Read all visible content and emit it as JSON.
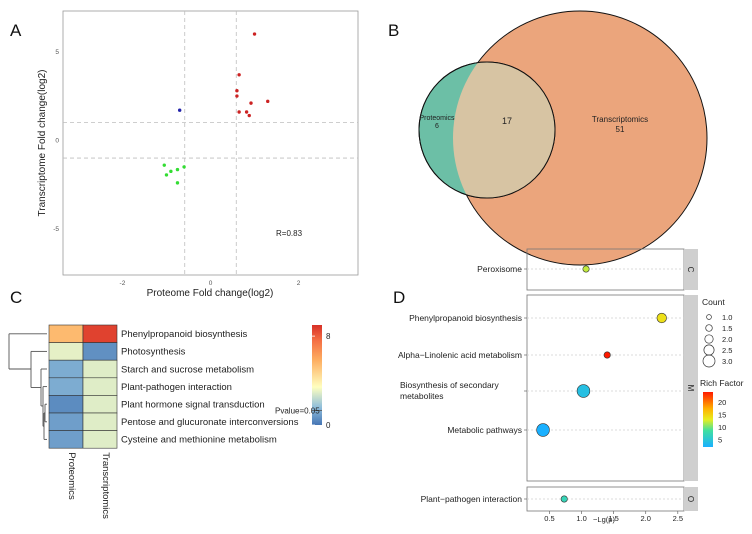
{
  "colors": {
    "up": "#cc2222",
    "down": "#33dd33",
    "opposite": "#2222aa",
    "venn_proteomics": "#6cbfa6",
    "venn_transcriptomics": "#eba57c",
    "venn_overlap": "#d7c4a3",
    "grid": "#bdbdbd",
    "strip": "#cfcfcf"
  },
  "panels": {
    "a": {
      "letter": "A"
    },
    "b": {
      "letter": "B"
    },
    "c": {
      "letter": "C"
    },
    "d": {
      "letter": "D"
    }
  },
  "chart_data": [
    {
      "type": "scatter",
      "panel": "A",
      "xlabel": "Proteome Fold change(log2)",
      "ylabel": "Transcriptome Fold change(log2)",
      "xlim": [
        -3.35,
        3.35
      ],
      "ylim": [
        -7.6,
        7.3
      ],
      "xticks": [
        -2,
        0,
        2
      ],
      "yticks": [
        -5,
        0,
        5
      ],
      "threshold_lines": {
        "x": [
          -0.585,
          0.585
        ],
        "y": [
          -1,
          1
        ]
      },
      "annotation": "R=0.83",
      "points": [
        {
          "x": 1.0,
          "y": 6.0,
          "group": "up"
        },
        {
          "x": 0.65,
          "y": 3.7,
          "group": "up"
        },
        {
          "x": 0.6,
          "y": 2.8,
          "group": "up"
        },
        {
          "x": 0.6,
          "y": 2.5,
          "group": "up"
        },
        {
          "x": 1.3,
          "y": 2.2,
          "group": "up"
        },
        {
          "x": 0.92,
          "y": 2.1,
          "group": "up"
        },
        {
          "x": 0.65,
          "y": 1.6,
          "group": "up"
        },
        {
          "x": 0.82,
          "y": 1.6,
          "group": "up"
        },
        {
          "x": 0.88,
          "y": 1.4,
          "group": "up"
        },
        {
          "x": -0.7,
          "y": 1.7,
          "group": "opposite"
        },
        {
          "x": -1.05,
          "y": -1.4,
          "group": "down"
        },
        {
          "x": -0.6,
          "y": -1.5,
          "group": "down"
        },
        {
          "x": -0.75,
          "y": -1.65,
          "group": "down"
        },
        {
          "x": -0.9,
          "y": -1.75,
          "group": "down"
        },
        {
          "x": -1.0,
          "y": -1.95,
          "group": "down"
        },
        {
          "x": -0.75,
          "y": -2.4,
          "group": "down"
        }
      ]
    },
    {
      "type": "venn",
      "panel": "B",
      "sets": [
        {
          "name": "Proteomics",
          "only": 6
        },
        {
          "name": "Transcriptomics",
          "only": 51
        }
      ],
      "overlap": 17
    },
    {
      "type": "heatmap",
      "panel": "C",
      "columns": [
        "Proteomics",
        "Transcriptomics"
      ],
      "rows": [
        "Phenylpropanoid biosynthesis",
        "Photosynthesis",
        "Starch and sucrose metabolism",
        "Plant-pathogen interaction",
        "Plant hormone signal transduction",
        "Pentose and glucuronate interconversions",
        "Cysteine and methionine metabolism"
      ],
      "values": [
        [
          5.5,
          8.6
        ],
        [
          3.0,
          0.6
        ],
        [
          1.2,
          2.9
        ],
        [
          1.2,
          2.9
        ],
        [
          0.5,
          2.9
        ],
        [
          0.9,
          2.9
        ],
        [
          0.9,
          2.9
        ]
      ],
      "colorbar": {
        "min": 0,
        "max": 9,
        "ticks": [
          0,
          8
        ],
        "marker_value": 1.3,
        "marker_label": "Pvalue=0.05"
      }
    },
    {
      "type": "scatter",
      "panel": "D",
      "xlabel": "−Lg(p)",
      "xlim": [
        0.15,
        2.55
      ],
      "xticks": [
        0.5,
        1.0,
        1.5,
        2.0,
        2.5
      ],
      "facets": [
        {
          "strip": "C",
          "rows": [
            "Peroxisome"
          ]
        },
        {
          "strip": "M",
          "rows": [
            "Phenylpropanoid biosynthesis",
            "Alpha−Linolenic acid metabolism",
            "Biosynthesis of secondary metabolites",
            "Metabolic pathways"
          ]
        },
        {
          "strip": "O",
          "rows": [
            "Plant−pathogen interaction"
          ]
        }
      ],
      "points": [
        {
          "pathway": "Peroxisome",
          "x": 1.07,
          "count": 1,
          "rich_factor": 12
        },
        {
          "pathway": "Phenylpropanoid biosynthesis",
          "x": 2.25,
          "count": 2,
          "rich_factor": 14
        },
        {
          "pathway": "Alpha−Linolenic acid metabolism",
          "x": 1.4,
          "count": 1,
          "rich_factor": 24
        },
        {
          "pathway": "Biosynthesis of secondary metabolites",
          "x": 1.03,
          "count": 3,
          "rich_factor": 4
        },
        {
          "pathway": "Metabolic pathways",
          "x": 0.4,
          "count": 3,
          "rich_factor": 2
        },
        {
          "pathway": "Plant−pathogen interaction",
          "x": 0.73,
          "count": 1,
          "rich_factor": 7
        }
      ],
      "size_legend": {
        "title": "Count",
        "values": [
          "1.0",
          "1.5",
          "2.0",
          "2.5",
          "3.0"
        ]
      },
      "color_legend": {
        "title": "Rich Factor",
        "ticks": [
          20,
          15,
          10,
          5
        ],
        "range": [
          2,
          24
        ]
      }
    }
  ]
}
